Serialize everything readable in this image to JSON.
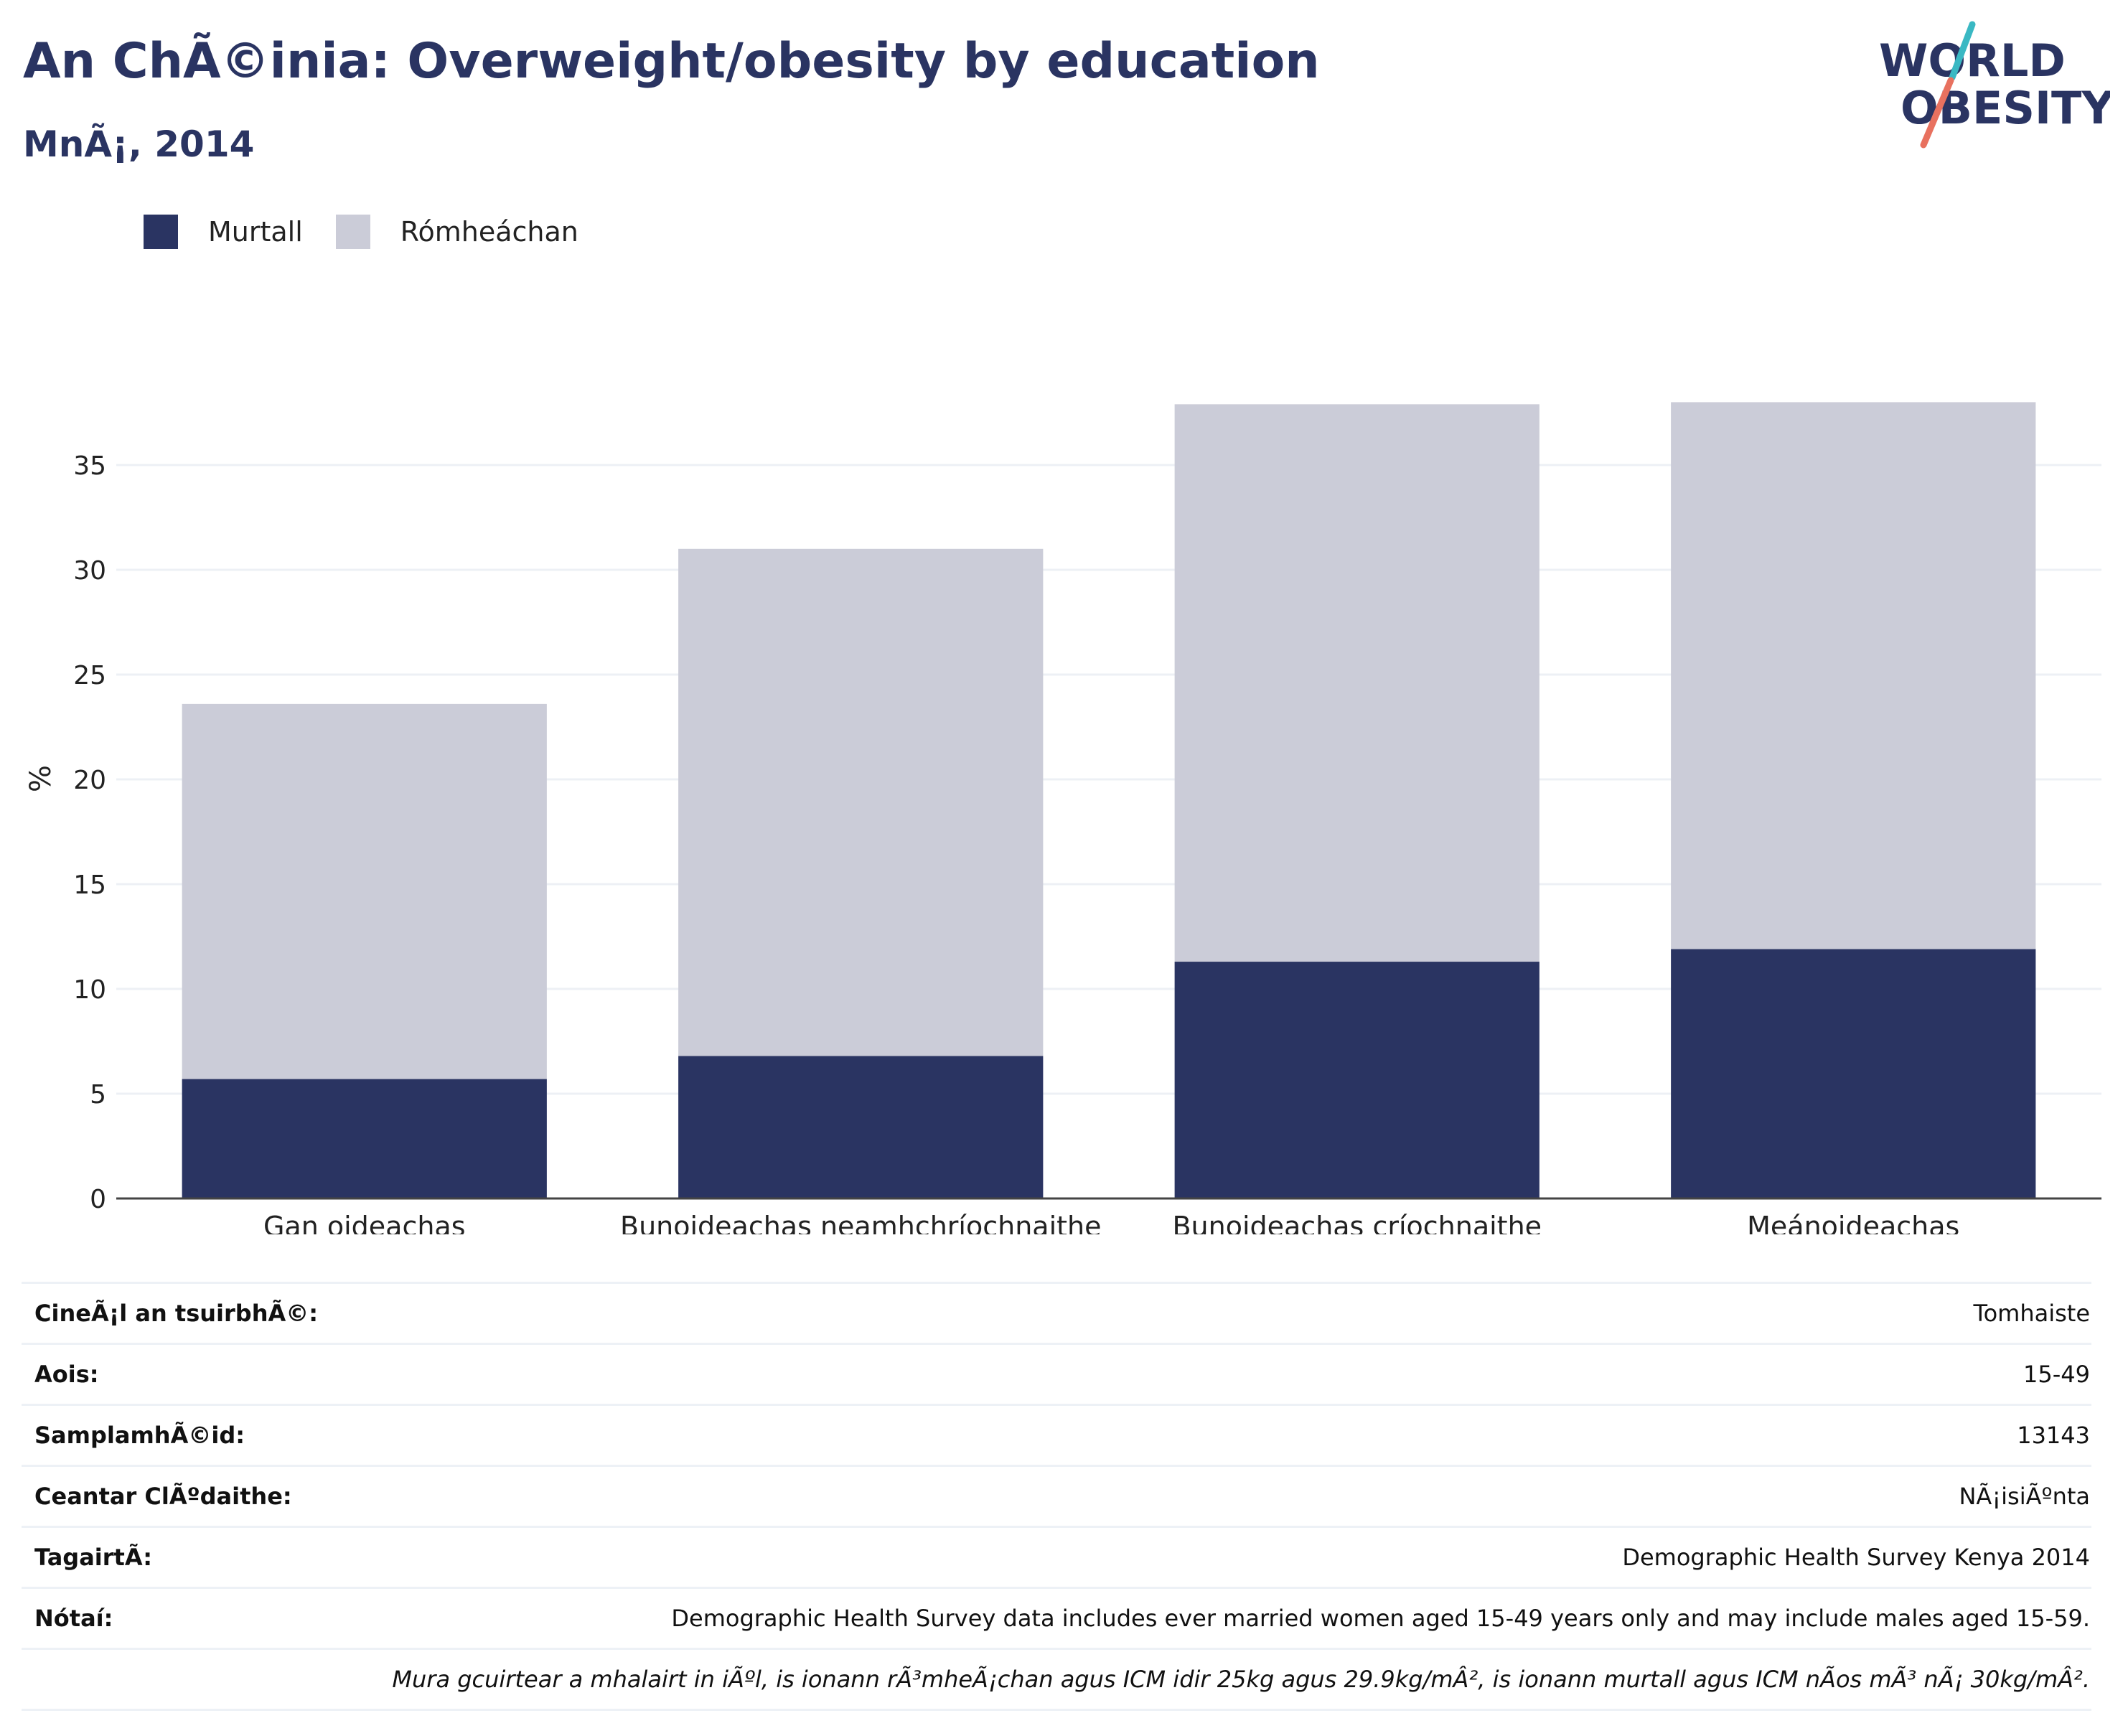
{
  "header": {
    "title": "An ChÃ©inia: Overweight/obesity by education",
    "subtitle": "MnÃ¡, 2014"
  },
  "logo": {
    "line1": "WORLD",
    "line2": "OBESITY",
    "navy": "#2a3462",
    "teal": "#3ab8c3",
    "coral": "#e8715f"
  },
  "chart_data": {
    "type": "bar",
    "stacked": true,
    "categories": [
      "Gan oideachas",
      "Bunoideachas neamhchríochnaithe",
      "Bunoideachas críochnaithe",
      "Meánoideachas"
    ],
    "series": [
      {
        "name": "Murtall",
        "color": "#2a3462",
        "values": [
          5.7,
          6.8,
          11.3,
          11.9
        ]
      },
      {
        "name": "Rómheáchan",
        "color": "#cbccd8",
        "values": [
          17.9,
          24.2,
          26.6,
          26.1
        ]
      }
    ],
    "ylabel": "%",
    "ylim": [
      0,
      38.5
    ],
    "yticks": [
      0,
      5,
      10,
      15,
      20,
      25,
      30,
      35
    ],
    "grid": true,
    "legend": "top-left"
  },
  "meta": [
    {
      "label": "CineÃ¡l an tsuirbhÃ©:",
      "value": "Tomhaiste"
    },
    {
      "label": "Aois:",
      "value": "15-49"
    },
    {
      "label": "SamplamhÃ©id:",
      "value": "13143"
    },
    {
      "label": "Ceantar ClÃºdaithe:",
      "value": "NÃ¡isiÃºnta"
    },
    {
      "label": "TagairtÃ:",
      "value": "Demographic Health Survey Kenya 2014"
    },
    {
      "label": "Nótaí:",
      "value": "Demographic Health Survey data includes ever married women aged 15-49 years only and may include males aged 15-59."
    },
    {
      "label": "",
      "value": "Mura gcuirtear a mhalairt in iÃºl, is ionann rÃ³mheÃ¡chan agus ICM idir 25kg agus 29.9kg/mÂ², is ionann murtall agus ICM nÃos mÃ³ nÃ¡ 30kg/mÂ².",
      "italic": true
    }
  ]
}
